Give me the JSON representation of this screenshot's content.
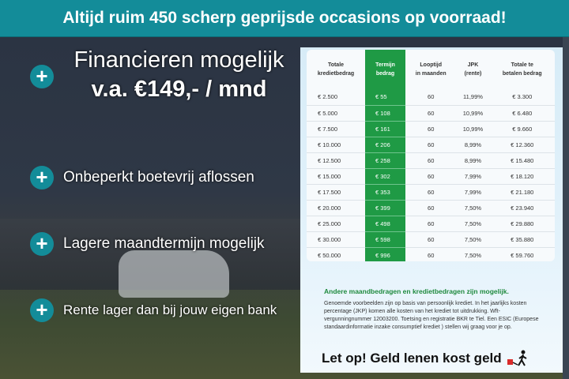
{
  "banner": {
    "title": "Altijd ruim 450 scherp geprijsde occasions op voorraad!"
  },
  "features": {
    "financing": {
      "line1": "Financieren mogelijk",
      "line2": "v.a. €149,- / mnd"
    },
    "items": [
      "Onbeperkt boetevrij aflossen",
      "Lagere maandtermijn mogelijk",
      "Rente lager dan bij jouw eigen bank"
    ]
  },
  "table": {
    "headers": [
      "Totale\nkredietbedrag",
      "Termijn\nbedrag",
      "Looptijd\nin maanden",
      "JPK\n(rente)",
      "Totale te\nbetalen bedrag"
    ],
    "rows": [
      [
        "€ 2.500",
        "€ 55",
        "60",
        "11,99%",
        "€ 3.300"
      ],
      [
        "€ 5.000",
        "€ 108",
        "60",
        "10,99%",
        "€ 6.480"
      ],
      [
        "€ 7.500",
        "€ 161",
        "60",
        "10,99%",
        "€ 9.660"
      ],
      [
        "€ 10.000",
        "€ 206",
        "60",
        "8,99%",
        "€ 12.360"
      ],
      [
        "€ 12.500",
        "€ 258",
        "60",
        "8,99%",
        "€ 15.480"
      ],
      [
        "€ 15.000",
        "€ 302",
        "60",
        "7,99%",
        "€ 18.120"
      ],
      [
        "€ 17.500",
        "€ 353",
        "60",
        "7,99%",
        "€ 21.180"
      ],
      [
        "€ 20.000",
        "€ 399",
        "60",
        "7,50%",
        "€ 23.940"
      ],
      [
        "€ 25.000",
        "€ 498",
        "60",
        "7,50%",
        "€ 29.880"
      ],
      [
        "€ 30.000",
        "€ 598",
        "60",
        "7,50%",
        "€ 35.880"
      ],
      [
        "€ 50.000",
        "€ 996",
        "60",
        "7,50%",
        "€ 59.760"
      ]
    ],
    "highlight_color": "#1f9a45"
  },
  "note": {
    "heading": "Andere maandbedragen en kredietbedragen zijn mogelijk.",
    "body": "Genoemde voorbeelden zijn op basis van persoonlijk krediet. In het jaarlijks kosten percentage (JKP) komen alle kosten van het krediet tot uitdrukking. Wft-vergunningnummer 12003200. Toetsing en registratie BKR te Tiel. Een ESIC (Europese standaardinformatie inzake consumptief krediet ) stellen wij graag voor je op."
  },
  "warning": {
    "text": "Let op! Geld lenen kost geld",
    "icon": "walking-man-ball-and-chain-icon"
  },
  "colors": {
    "banner": "#138c99",
    "accent_green": "#1f9a45"
  }
}
